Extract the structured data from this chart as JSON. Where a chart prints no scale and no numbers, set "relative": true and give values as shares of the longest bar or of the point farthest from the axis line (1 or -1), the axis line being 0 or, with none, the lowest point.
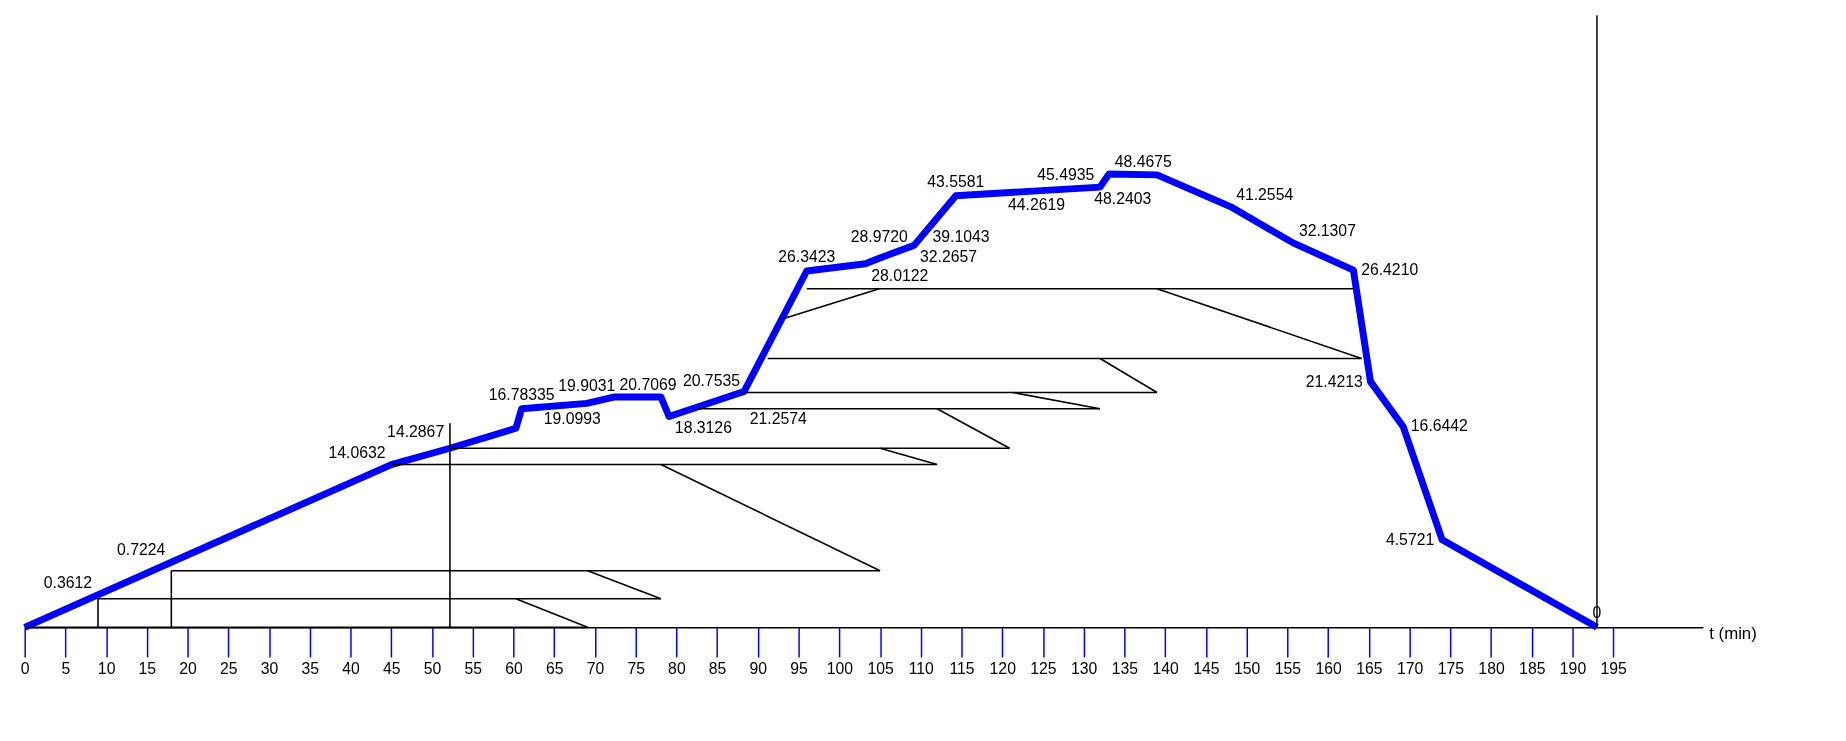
{
  "chart_data": {
    "type": "line",
    "relative": true,
    "xlabel": "t (min)",
    "xlim": [
      0,
      206
    ],
    "xticks": [
      0,
      5,
      10,
      15,
      20,
      25,
      30,
      35,
      40,
      45,
      50,
      55,
      60,
      65,
      70,
      75,
      80,
      85,
      90,
      95,
      100,
      105,
      110,
      115,
      120,
      125,
      130,
      135,
      140,
      145,
      150,
      155,
      160,
      165,
      170,
      175,
      180,
      185,
      190,
      195
    ],
    "grid": false,
    "line_style": "solid",
    "marker": "none",
    "series": [
      {
        "color": "#0000ff",
        "x": [
          0,
          45,
          52.2,
          60.3,
          61,
          69,
          72.3,
          78.1,
          79.1,
          88.3,
          96,
          103.2,
          104.9,
          109.2,
          114.3,
          132,
          133.1,
          139,
          148,
          155.7,
          163.1,
          165.2,
          169.2,
          174,
          193
        ],
        "values": [
          0,
          0.359,
          0.395,
          0.439,
          0.482,
          0.494,
          0.508,
          0.508,
          0.465,
          0.52,
          0.786,
          0.802,
          0.814,
          0.843,
          0.952,
          0.971,
          1.0,
          0.998,
          0.928,
          0.848,
          0.788,
          0.542,
          0.443,
          0.193,
          0
        ]
      },
      {
        "color": "#000000",
        "x": [
          0,
          69.1
        ],
        "values": [
          0,
          0
        ]
      },
      {
        "color": "#000000",
        "x": [
          9,
          78.1
        ],
        "values": [
          0.063,
          0.063
        ]
      },
      {
        "color": "#000000",
        "x": [
          60.3,
          69.1
        ],
        "values": [
          0.063,
          0
        ]
      },
      {
        "color": "#000000",
        "x": [
          9,
          9
        ],
        "values": [
          0,
          0.063
        ]
      },
      {
        "color": "#000000",
        "x": [
          18,
          105
        ],
        "values": [
          0.125,
          0.125
        ]
      },
      {
        "color": "#000000",
        "x": [
          18,
          18
        ],
        "values": [
          0,
          0.125
        ]
      },
      {
        "color": "#000000",
        "x": [
          69.1,
          78.1
        ],
        "values": [
          0.125,
          0.063
        ]
      },
      {
        "color": "#000000",
        "x": [
          52.2,
          52.2
        ],
        "values": [
          0,
          0.45
        ]
      },
      {
        "color": "#000000",
        "x": [
          45,
          112
        ],
        "values": [
          0.359,
          0.359
        ]
      },
      {
        "color": "#000000",
        "x": [
          78.1,
          105
        ],
        "values": [
          0.359,
          0.125
        ]
      },
      {
        "color": "#000000",
        "x": [
          52.2,
          120.9
        ],
        "values": [
          0.395,
          0.395
        ]
      },
      {
        "color": "#000000",
        "x": [
          105,
          112
        ],
        "values": [
          0.395,
          0.359
        ]
      },
      {
        "color": "#000000",
        "x": [
          82.6,
          132
        ],
        "values": [
          0.482,
          0.482
        ]
      },
      {
        "color": "#000000",
        "x": [
          112,
          120.9
        ],
        "values": [
          0.482,
          0.395
        ]
      },
      {
        "color": "#000000",
        "x": [
          88.3,
          139
        ],
        "values": [
          0.518,
          0.518
        ]
      },
      {
        "color": "#000000",
        "x": [
          121.3,
          132
        ],
        "values": [
          0.518,
          0.482
        ]
      },
      {
        "color": "#000000",
        "x": [
          91.2,
          164.1
        ],
        "values": [
          0.593,
          0.593
        ]
      },
      {
        "color": "#000000",
        "x": [
          132,
          139
        ],
        "values": [
          0.593,
          0.518
        ]
      },
      {
        "color": "#000000",
        "x": [
          96,
          163.1
        ],
        "values": [
          0.747,
          0.747
        ]
      },
      {
        "color": "#000000",
        "x": [
          139,
          164.1
        ],
        "values": [
          0.747,
          0.593
        ]
      },
      {
        "color": "#000000",
        "x": [
          93,
          104.9
        ],
        "values": [
          0.68,
          0.747
        ]
      }
    ],
    "ref_lines": [
      {
        "axis": "x",
        "value": 193,
        "color": "#000000"
      }
    ],
    "annotations": [
      {
        "text": "0.3612",
        "x": 9,
        "y": 0.072
      },
      {
        "text": "0.7224",
        "x": 18,
        "y": 0.144
      },
      {
        "text": "14.0632",
        "x": 45,
        "y": 0.359
      },
      {
        "text": "14.2867",
        "x": 52.2,
        "y": 0.395
      },
      {
        "text": "16.78335",
        "x": 61,
        "y": 0.482
      },
      {
        "text": "19.0993",
        "x": 63,
        "y": 0.485
      },
      {
        "text": "19.9031",
        "x": 69,
        "y": 0.494
      },
      {
        "text": "20.7069",
        "x": 72.3,
        "y": 0.508
      },
      {
        "text": "18.3126",
        "x": 79.1,
        "y": 0.465
      },
      {
        "text": "20.7535",
        "x": 84.3,
        "y": 0.496
      },
      {
        "text": "21.2574",
        "x": 88.3,
        "y": 0.52
      },
      {
        "text": "26.3423",
        "x": 96,
        "y": 0.786
      },
      {
        "text": "28.0122",
        "x": 103.2,
        "y": 0.802
      },
      {
        "text": "28.9720",
        "x": 104.9,
        "y": 0.814
      },
      {
        "text": "32.2657",
        "x": 109.2,
        "y": 0.843
      },
      {
        "text": "39.1043",
        "x": 110,
        "y": 0.86
      },
      {
        "text": "43.5581",
        "x": 114.3,
        "y": 0.952
      },
      {
        "text": "44.2619",
        "x": 120,
        "y": 0.958
      },
      {
        "text": "45.4935",
        "x": 132,
        "y": 0.971
      },
      {
        "text": "48.4675",
        "x": 133.1,
        "y": 1.0
      },
      {
        "text": "48.2403",
        "x": 139,
        "y": 0.998
      },
      {
        "text": "41.2554",
        "x": 148,
        "y": 0.928
      },
      {
        "text": "32.1307",
        "x": 155.7,
        "y": 0.848
      },
      {
        "text": "26.4210",
        "x": 163.1,
        "y": 0.788
      },
      {
        "text": "21.4213",
        "x": 165.2,
        "y": 0.542
      },
      {
        "text": "16.6442",
        "x": 169.2,
        "y": 0.443
      },
      {
        "text": "4.5721",
        "x": 174,
        "y": 0.193
      },
      {
        "text": "0",
        "x": 193,
        "y": 0
      }
    ]
  }
}
